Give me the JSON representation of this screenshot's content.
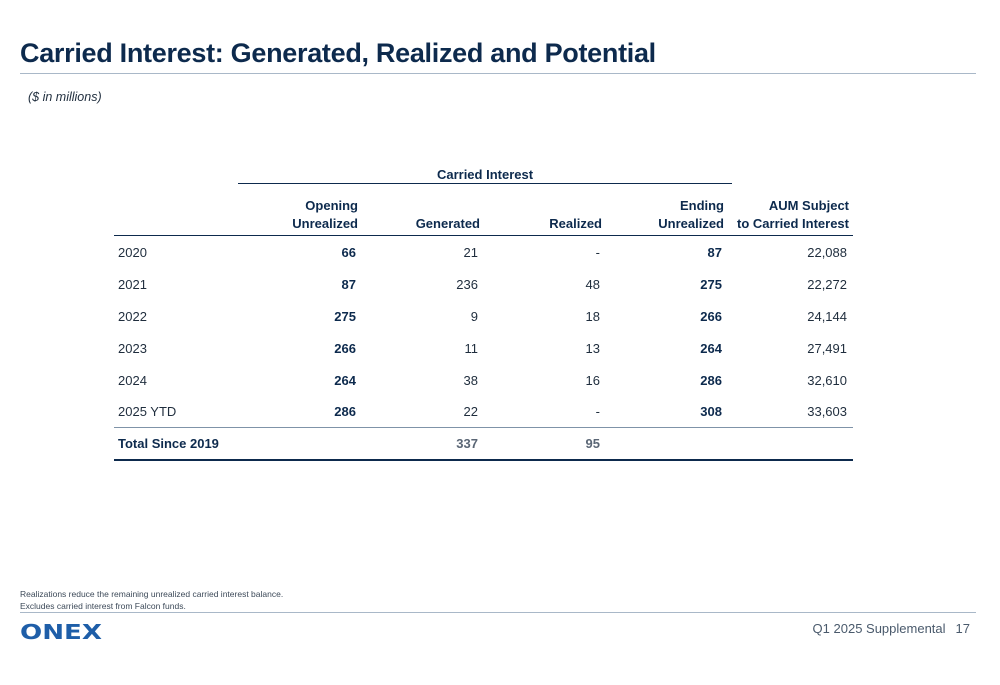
{
  "header": {
    "title": "Carried Interest: Generated, Realized and Potential",
    "subtitle": "($ in millions)"
  },
  "table": {
    "group_header": "Carried Interest",
    "columns": {
      "opening_line1": "Opening",
      "opening_line2": "Unrealized",
      "generated": "Generated",
      "realized": "Realized",
      "ending_line1": "Ending",
      "ending_line2": "Unrealized",
      "aum_line1": "AUM Subject",
      "aum_line2": "to Carried Interest"
    },
    "rows": [
      {
        "year": "2020",
        "opening": "66",
        "generated": "21",
        "realized": "-",
        "ending": "87",
        "aum": "22,088"
      },
      {
        "year": "2021",
        "opening": "87",
        "generated": "236",
        "realized": "48",
        "ending": "275",
        "aum": "22,272"
      },
      {
        "year": "2022",
        "opening": "275",
        "generated": "9",
        "realized": "18",
        "ending": "266",
        "aum": "24,144"
      },
      {
        "year": "2023",
        "opening": "266",
        "generated": "11",
        "realized": "13",
        "ending": "264",
        "aum": "27,491"
      },
      {
        "year": "2024",
        "opening": "264",
        "generated": "38",
        "realized": "16",
        "ending": "286",
        "aum": "32,610"
      },
      {
        "year": "2025 YTD",
        "opening": "286",
        "generated": "22",
        "realized": "-",
        "ending": "308",
        "aum": "33,603"
      }
    ],
    "total": {
      "label": "Total Since 2019",
      "generated": "337",
      "realized": "95"
    }
  },
  "footnotes": [
    "Realizations reduce the remaining unrealized carried interest balance.",
    "Excludes carried interest from Falcon funds."
  ],
  "footer": {
    "logo_text": "ONEX",
    "report": "Q1 2025 Supplemental",
    "page_number": "17"
  },
  "colors": {
    "navy": "#0d2a4d",
    "logo_blue": "#1e5ea8",
    "rule": "#a9b8c8"
  }
}
